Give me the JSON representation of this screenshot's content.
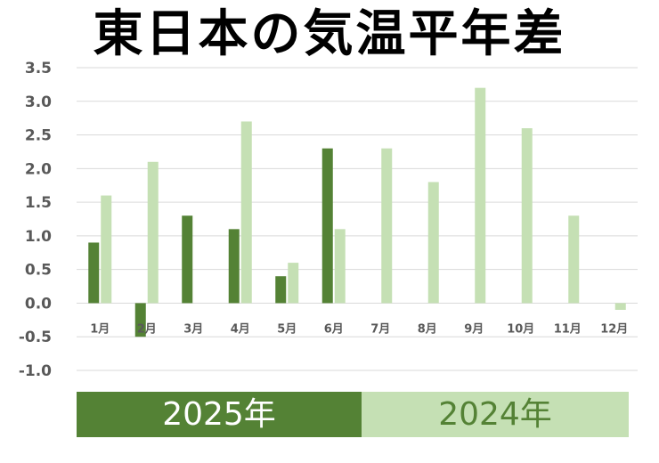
{
  "chart_data": {
    "type": "bar",
    "title": "東日本の気温平年差",
    "categories": [
      "1月",
      "2月",
      "3月",
      "4月",
      "5月",
      "6月",
      "7月",
      "8月",
      "9月",
      "10月",
      "11月",
      "12月"
    ],
    "series": [
      {
        "name": "2025年",
        "color": "#548235",
        "values": [
          0.9,
          -0.5,
          1.3,
          1.1,
          0.4,
          2.3,
          null,
          null,
          null,
          null,
          null,
          null
        ]
      },
      {
        "name": "2024年",
        "color": "#c5e0b4",
        "values": [
          1.6,
          2.1,
          null,
          2.7,
          0.6,
          1.1,
          2.3,
          1.8,
          3.2,
          2.6,
          1.3,
          -0.1
        ]
      }
    ],
    "ylim": [
      -1.0,
      3.5
    ],
    "yticks": [
      "3.5",
      "3.0",
      "2.5",
      "2.0",
      "1.5",
      "1.0",
      "0.5",
      "0.0",
      "-0.5",
      "-1.0"
    ],
    "grid": true,
    "legend": "bottom",
    "xlabel": "",
    "ylabel": ""
  }
}
